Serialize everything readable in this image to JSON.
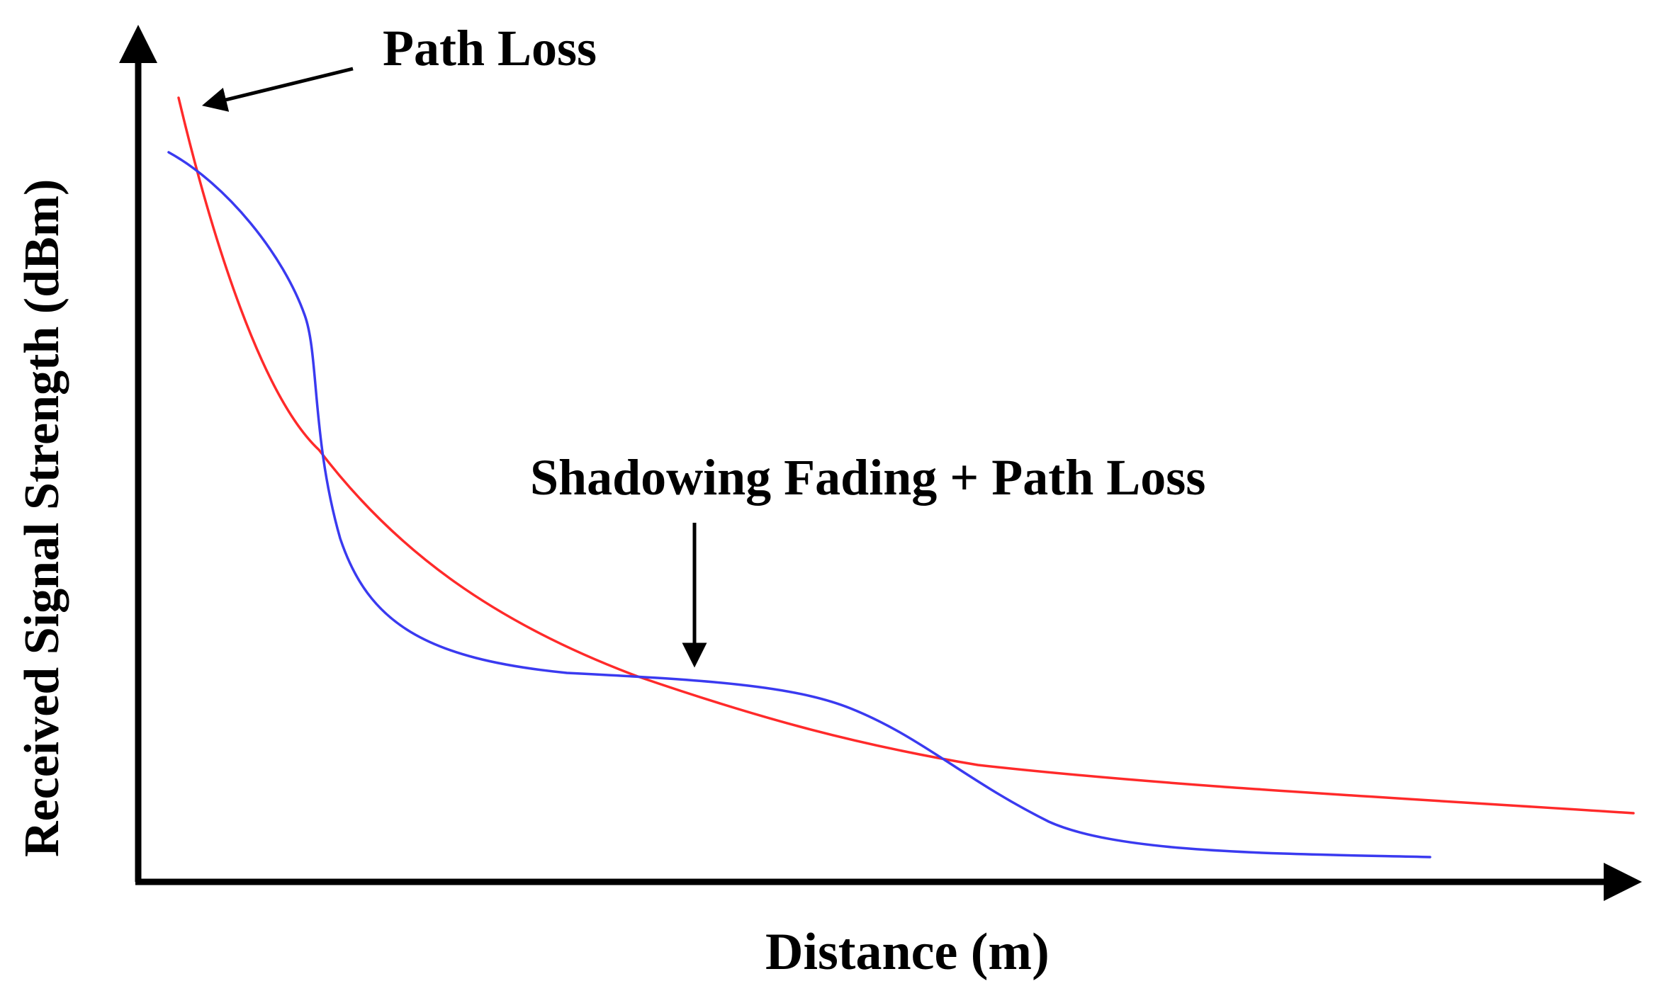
{
  "labels": {
    "y_axis": "Received Signal Strength (dBm)",
    "x_axis": "Distance (m)",
    "path_loss": "Path Loss",
    "shadowing": "Shadowing Fading + Path Loss"
  },
  "colors": {
    "path_loss_curve": "#ff2a2a",
    "shadowing_curve": "#3a3af0",
    "axes": "#000000"
  },
  "curves": [
    {
      "label_key": "path_loss",
      "color": "#ff2a2a",
      "description": "smooth monotonic decay"
    },
    {
      "label_key": "shadowing",
      "color": "#3a3af0",
      "description": "decay with shadowing fluctuations"
    }
  ]
}
